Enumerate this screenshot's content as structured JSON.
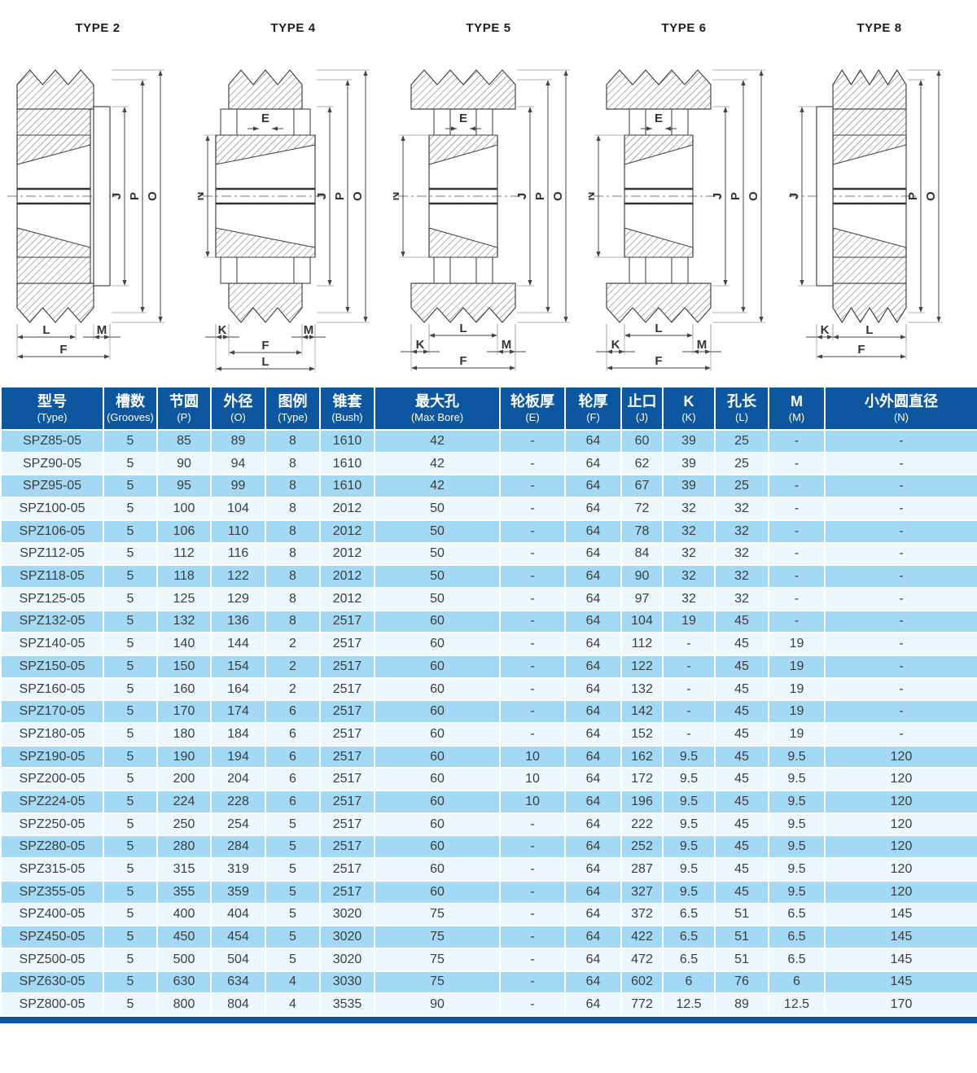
{
  "colors": {
    "header_bg": "#0d57a1",
    "row_alt": "#a3d9f4",
    "row_light": "#edf7fd",
    "bottom_bar": "#0d57a1",
    "cell_text": "#3d3d3d"
  },
  "diagrams": [
    {
      "title": "TYPE 2",
      "dims": {
        "top": [],
        "left": [],
        "right": [
          "J",
          "P",
          "O"
        ],
        "bottom": [
          "L",
          "M",
          "F"
        ]
      }
    },
    {
      "title": "TYPE 4",
      "dims": {
        "top": [
          "E"
        ],
        "left": [
          "N"
        ],
        "right": [
          "J",
          "P",
          "O"
        ],
        "bottom": [
          "K",
          "M",
          "F",
          "L"
        ]
      }
    },
    {
      "title": "TYPE 5",
      "dims": {
        "top": [
          "E"
        ],
        "left": [
          "N"
        ],
        "right": [
          "J",
          "P",
          "O"
        ],
        "bottom": [
          "L",
          "K",
          "M",
          "F"
        ]
      }
    },
    {
      "title": "TYPE 6",
      "dims": {
        "top": [
          "E"
        ],
        "left": [
          "N"
        ],
        "right": [
          "J",
          "P",
          "O"
        ],
        "bottom": [
          "L",
          "K",
          "M",
          "F"
        ]
      }
    },
    {
      "title": "TYPE 8",
      "dims": {
        "top": [],
        "left": [
          "J"
        ],
        "right": [
          "P",
          "O"
        ],
        "bottom": [
          "K",
          "L",
          "F"
        ]
      }
    }
  ],
  "table": {
    "columns": [
      {
        "zh": "型号",
        "en": "(Type)"
      },
      {
        "zh": "槽数",
        "en": "(Grooves)"
      },
      {
        "zh": "节圆",
        "en": "(P)"
      },
      {
        "zh": "外径",
        "en": "(O)"
      },
      {
        "zh": "图例",
        "en": "(Type)"
      },
      {
        "zh": "锥套",
        "en": "(Bush)"
      },
      {
        "zh": "最大孔",
        "en": "(Max Bore)"
      },
      {
        "zh": "轮板厚",
        "en": "(E)"
      },
      {
        "zh": "轮厚",
        "en": "(F)"
      },
      {
        "zh": "止口",
        "en": "(J)"
      },
      {
        "zh": "K",
        "en": "(K)"
      },
      {
        "zh": "孔长",
        "en": "(L)"
      },
      {
        "zh": "M",
        "en": "(M)"
      },
      {
        "zh": "小外圆直径",
        "en": "(N)"
      }
    ],
    "rows": [
      [
        "SPZ85-05",
        "5",
        "85",
        "89",
        "8",
        "1610",
        "42",
        "-",
        "64",
        "60",
        "39",
        "25",
        "-",
        "-"
      ],
      [
        "SPZ90-05",
        "5",
        "90",
        "94",
        "8",
        "1610",
        "42",
        "-",
        "64",
        "62",
        "39",
        "25",
        "-",
        "-"
      ],
      [
        "SPZ95-05",
        "5",
        "95",
        "99",
        "8",
        "1610",
        "42",
        "-",
        "64",
        "67",
        "39",
        "25",
        "-",
        "-"
      ],
      [
        "SPZ100-05",
        "5",
        "100",
        "104",
        "8",
        "2012",
        "50",
        "-",
        "64",
        "72",
        "32",
        "32",
        "-",
        "-"
      ],
      [
        "SPZ106-05",
        "5",
        "106",
        "110",
        "8",
        "2012",
        "50",
        "-",
        "64",
        "78",
        "32",
        "32",
        "-",
        "-"
      ],
      [
        "SPZ112-05",
        "5",
        "112",
        "116",
        "8",
        "2012",
        "50",
        "-",
        "64",
        "84",
        "32",
        "32",
        "-",
        "-"
      ],
      [
        "SPZ118-05",
        "5",
        "118",
        "122",
        "8",
        "2012",
        "50",
        "-",
        "64",
        "90",
        "32",
        "32",
        "-",
        "-"
      ],
      [
        "SPZ125-05",
        "5",
        "125",
        "129",
        "8",
        "2012",
        "50",
        "-",
        "64",
        "97",
        "32",
        "32",
        "-",
        "-"
      ],
      [
        "SPZ132-05",
        "5",
        "132",
        "136",
        "8",
        "2517",
        "60",
        "-",
        "64",
        "104",
        "19",
        "45",
        "-",
        "-"
      ],
      [
        "SPZ140-05",
        "5",
        "140",
        "144",
        "2",
        "2517",
        "60",
        "-",
        "64",
        "112",
        "-",
        "45",
        "19",
        "-"
      ],
      [
        "SPZ150-05",
        "5",
        "150",
        "154",
        "2",
        "2517",
        "60",
        "-",
        "64",
        "122",
        "-",
        "45",
        "19",
        "-"
      ],
      [
        "SPZ160-05",
        "5",
        "160",
        "164",
        "2",
        "2517",
        "60",
        "-",
        "64",
        "132",
        "-",
        "45",
        "19",
        "-"
      ],
      [
        "SPZ170-05",
        "5",
        "170",
        "174",
        "6",
        "2517",
        "60",
        "-",
        "64",
        "142",
        "-",
        "45",
        "19",
        "-"
      ],
      [
        "SPZ180-05",
        "5",
        "180",
        "184",
        "6",
        "2517",
        "60",
        "-",
        "64",
        "152",
        "-",
        "45",
        "19",
        "-"
      ],
      [
        "SPZ190-05",
        "5",
        "190",
        "194",
        "6",
        "2517",
        "60",
        "10",
        "64",
        "162",
        "9.5",
        "45",
        "9.5",
        "120"
      ],
      [
        "SPZ200-05",
        "5",
        "200",
        "204",
        "6",
        "2517",
        "60",
        "10",
        "64",
        "172",
        "9.5",
        "45",
        "9.5",
        "120"
      ],
      [
        "SPZ224-05",
        "5",
        "224",
        "228",
        "6",
        "2517",
        "60",
        "10",
        "64",
        "196",
        "9.5",
        "45",
        "9.5",
        "120"
      ],
      [
        "SPZ250-05",
        "5",
        "250",
        "254",
        "5",
        "2517",
        "60",
        "-",
        "64",
        "222",
        "9.5",
        "45",
        "9.5",
        "120"
      ],
      [
        "SPZ280-05",
        "5",
        "280",
        "284",
        "5",
        "2517",
        "60",
        "-",
        "64",
        "252",
        "9.5",
        "45",
        "9.5",
        "120"
      ],
      [
        "SPZ315-05",
        "5",
        "315",
        "319",
        "5",
        "2517",
        "60",
        "-",
        "64",
        "287",
        "9.5",
        "45",
        "9.5",
        "120"
      ],
      [
        "SPZ355-05",
        "5",
        "355",
        "359",
        "5",
        "2517",
        "60",
        "-",
        "64",
        "327",
        "9.5",
        "45",
        "9.5",
        "120"
      ],
      [
        "SPZ400-05",
        "5",
        "400",
        "404",
        "5",
        "3020",
        "75",
        "-",
        "64",
        "372",
        "6.5",
        "51",
        "6.5",
        "145"
      ],
      [
        "SPZ450-05",
        "5",
        "450",
        "454",
        "5",
        "3020",
        "75",
        "-",
        "64",
        "422",
        "6.5",
        "51",
        "6.5",
        "145"
      ],
      [
        "SPZ500-05",
        "5",
        "500",
        "504",
        "5",
        "3020",
        "75",
        "-",
        "64",
        "472",
        "6.5",
        "51",
        "6.5",
        "145"
      ],
      [
        "SPZ630-05",
        "5",
        "630",
        "634",
        "4",
        "3030",
        "75",
        "-",
        "64",
        "602",
        "6",
        "76",
        "6",
        "145"
      ],
      [
        "SPZ800-05",
        "5",
        "800",
        "804",
        "4",
        "3535",
        "90",
        "-",
        "64",
        "772",
        "12.5",
        "89",
        "12.5",
        "170"
      ]
    ]
  }
}
